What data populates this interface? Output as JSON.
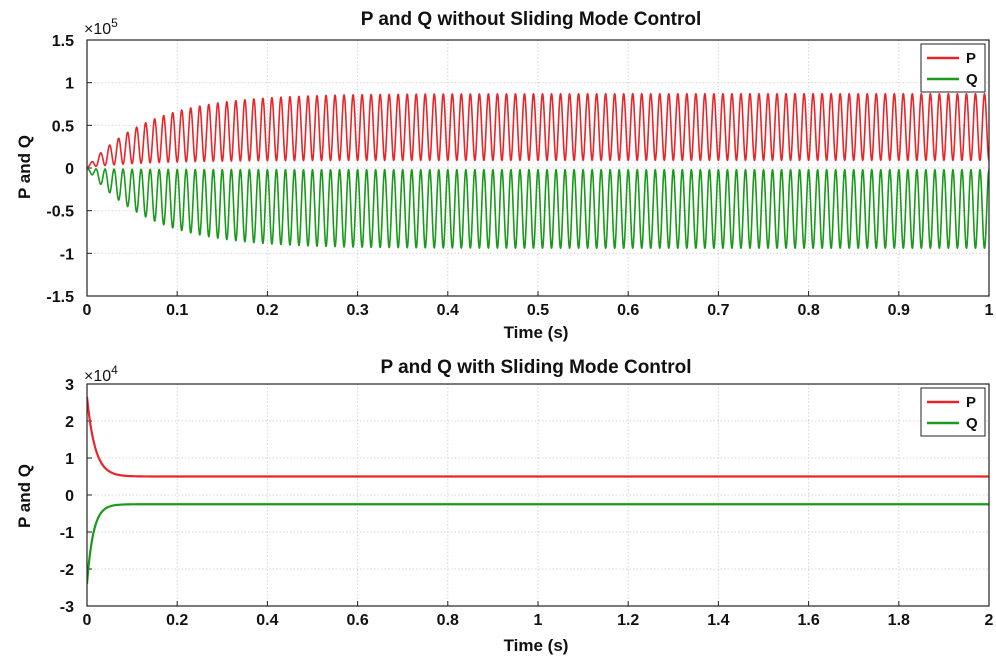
{
  "chart_data": [
    {
      "type": "line",
      "title": "P and Q without Sliding Mode Control",
      "xlabel": "Time (s)",
      "ylabel": "P and Q",
      "xlim": [
        0,
        1
      ],
      "ylim": [
        -1.5,
        1.5
      ],
      "y_exponent": "5",
      "y_multiplier_base": "×10",
      "xticks": [
        "0",
        "0.1",
        "0.2",
        "0.3",
        "0.4",
        "0.5",
        "0.6",
        "0.7",
        "0.8",
        "0.9",
        "1"
      ],
      "yticks": [
        "1.5",
        "1",
        "0.5",
        "0",
        "-0.5",
        "-1",
        "-1.5"
      ],
      "ytick_values": [
        1.5,
        1,
        0.5,
        0,
        -0.5,
        -1,
        -1.5
      ],
      "xtick_values": [
        0,
        0.1,
        0.2,
        0.3,
        0.4,
        0.5,
        0.6,
        0.7,
        0.8,
        0.9,
        1
      ],
      "grid": true,
      "legend_position": "top-right",
      "series": [
        {
          "name": "P",
          "color": "#e8262a",
          "model": "oscillation",
          "center": 0.48,
          "amplitude": 0.39,
          "offset": 0.01,
          "frequency_hz": 100,
          "rise_tau": 0.07,
          "phase": "start-at-minimum"
        },
        {
          "name": "Q",
          "color": "#1a9a1a",
          "model": "oscillation",
          "center": -0.48,
          "amplitude": 0.46,
          "offset": -0.01,
          "frequency_hz": 100,
          "rise_tau": 0.07,
          "phase": "start-at-maximum"
        }
      ]
    },
    {
      "type": "line",
      "title": "P and Q with Sliding Mode Control",
      "xlabel": "Time (s)",
      "ylabel": "P and Q",
      "xlim": [
        0,
        2
      ],
      "ylim": [
        -3,
        3
      ],
      "y_exponent": "4",
      "y_multiplier_base": "×10",
      "xticks": [
        "0",
        "0.2",
        "0.4",
        "0.6",
        "0.8",
        "1",
        "1.2",
        "1.4",
        "1.6",
        "1.8",
        "2"
      ],
      "yticks": [
        "3",
        "2",
        "1",
        "0",
        "-1",
        "-2",
        "-3"
      ],
      "ytick_values": [
        3,
        2,
        1,
        0,
        -1,
        -2,
        -3
      ],
      "xtick_values": [
        0,
        0.2,
        0.4,
        0.6,
        0.8,
        1,
        1.2,
        1.4,
        1.6,
        1.8,
        2
      ],
      "grid": true,
      "legend_position": "top-right",
      "series": [
        {
          "name": "P",
          "color": "#e8262a",
          "model": "decay",
          "start": 2.65,
          "final": 0.5,
          "tau": 0.018
        },
        {
          "name": "Q",
          "color": "#1a9a1a",
          "model": "decay",
          "start": -2.4,
          "final": -0.25,
          "tau": 0.014
        }
      ]
    }
  ]
}
